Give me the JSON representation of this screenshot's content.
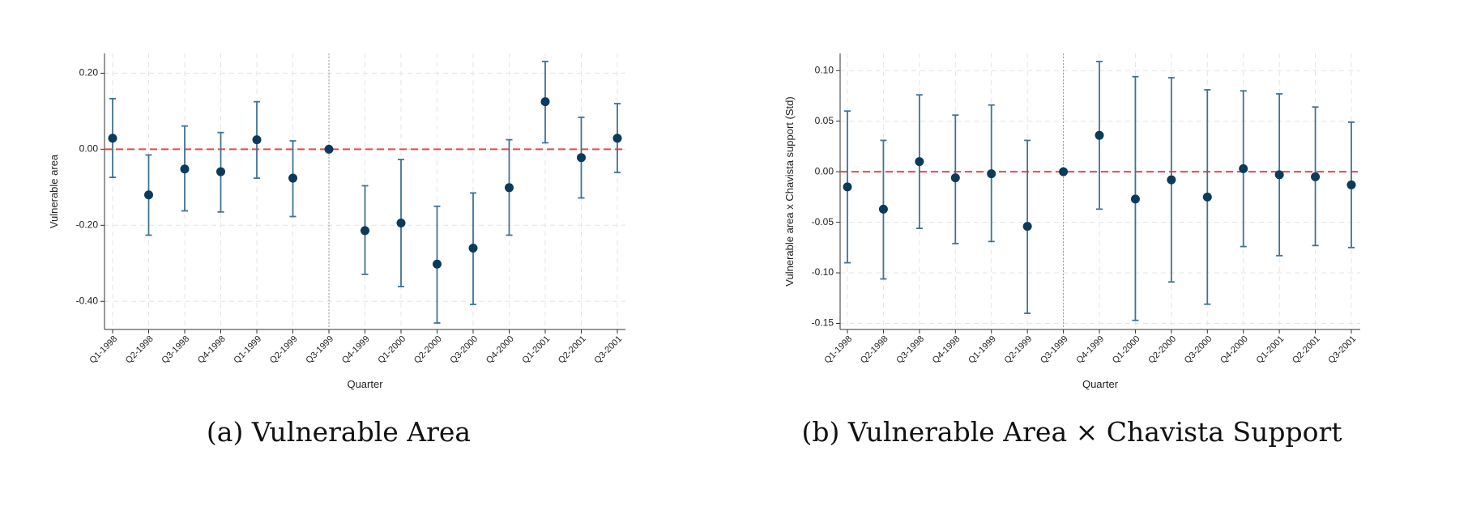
{
  "chart_data": [
    {
      "type": "errorbar",
      "caption": "(a) Vulnerable Area",
      "y_label": "Vulnerable area",
      "x_label": "Quarter",
      "categories": [
        "Q1-1998",
        "Q2-1998",
        "Q3-1998",
        "Q4-1998",
        "Q1-1999",
        "Q2-1999",
        "Q3-1999",
        "Q4-1999",
        "Q1-2000",
        "Q2-2000",
        "Q3-2000",
        "Q4-2000",
        "Q1-2001",
        "Q2-2001",
        "Q3-2001"
      ],
      "values": [
        0.029,
        -0.12,
        -0.052,
        -0.059,
        0.025,
        -0.076,
        0,
        -0.214,
        -0.194,
        -0.302,
        -0.26,
        -0.101,
        0.125,
        -0.022,
        0.029
      ],
      "lower": [
        -0.074,
        -0.226,
        -0.162,
        -0.165,
        -0.076,
        -0.177,
        0,
        -0.329,
        -0.361,
        -0.457,
        -0.408,
        -0.226,
        0.017,
        -0.128,
        -0.061
      ],
      "upper": [
        0.133,
        -0.015,
        0.061,
        0.044,
        0.125,
        0.022,
        0,
        -0.096,
        -0.027,
        -0.15,
        -0.115,
        0.025,
        0.231,
        0.084,
        0.12
      ],
      "ylim": [
        -0.474,
        0.252
      ],
      "yticks": [
        {
          "value": -0.4,
          "label": "-0.40"
        },
        {
          "value": -0.2,
          "label": "-0.20"
        },
        {
          "value": 0,
          "label": "0.00"
        },
        {
          "value": 0.2,
          "label": "0.20"
        }
      ],
      "grid": true,
      "point_color": "#0b3a5a",
      "bar_color": "#3f7393",
      "reference_color": "#e8474b"
    },
    {
      "type": "errorbar",
      "caption": "(b) Vulnerable Area × Chavista Support",
      "y_label": "Vulnerable area x Chavista support (Std)",
      "x_label": "Quarter",
      "categories": [
        "Q1-1998",
        "Q2-1998",
        "Q3-1998",
        "Q4-1998",
        "Q1-1999",
        "Q2-1999",
        "Q3-1999",
        "Q4-1999",
        "Q1-2000",
        "Q2-2000",
        "Q3-2000",
        "Q4-2000",
        "Q1-2001",
        "Q2-2001",
        "Q3-2001"
      ],
      "values": [
        -0.015,
        -0.037,
        0.01,
        -0.006,
        -0.002,
        -0.054,
        0,
        0.036,
        -0.027,
        -0.008,
        -0.025,
        0.003,
        -0.003,
        -0.005,
        -0.013
      ],
      "lower": [
        -0.09,
        -0.106,
        -0.056,
        -0.071,
        -0.069,
        -0.14,
        0,
        -0.037,
        -0.147,
        -0.109,
        -0.131,
        -0.074,
        -0.083,
        -0.073,
        -0.075
      ],
      "upper": [
        0.06,
        0.031,
        0.076,
        0.056,
        0.066,
        0.031,
        0,
        0.109,
        0.094,
        0.093,
        0.081,
        0.08,
        0.077,
        0.064,
        0.049
      ],
      "ylim": [
        -0.156,
        0.117
      ],
      "yticks": [
        {
          "value": -0.15,
          "label": "-0.15"
        },
        {
          "value": -0.1,
          "label": "-0.10"
        },
        {
          "value": -0.05,
          "label": "-0.05"
        },
        {
          "value": 0,
          "label": "0.00"
        },
        {
          "value": 0.05,
          "label": "0.05"
        },
        {
          "value": 0.1,
          "label": "0.10"
        }
      ],
      "grid": true,
      "point_color": "#0b3a5a",
      "bar_color": "#3f7393",
      "reference_color": "#e8474b"
    }
  ]
}
